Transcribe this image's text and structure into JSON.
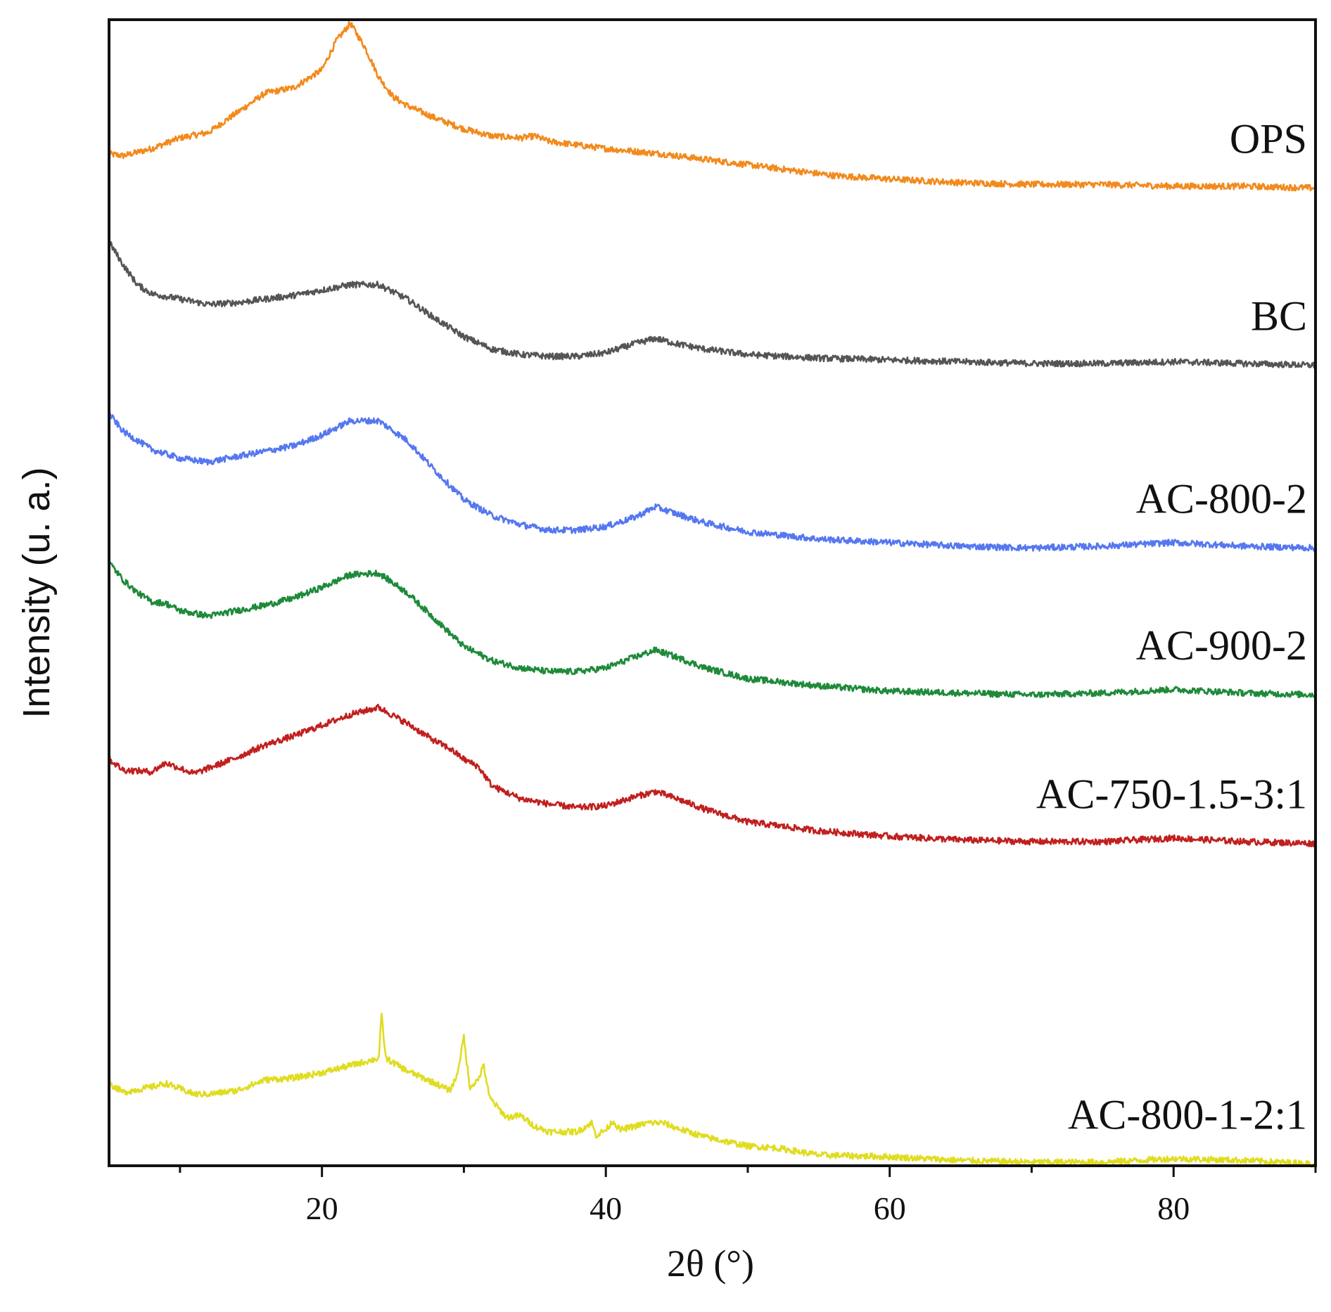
{
  "chart_data": {
    "type": "line",
    "title": "",
    "xlabel": "2θ (°)",
    "ylabel": "Intensity (u. a.)",
    "xlim": [
      5,
      90
    ],
    "ylim": [
      0,
      6.4
    ],
    "x_ticks": [
      20,
      40,
      60,
      80
    ],
    "x_minor_ticks": [
      10,
      30,
      50,
      70,
      90
    ],
    "yticks_visible": false,
    "grid": false,
    "series": [
      {
        "name": "OPS",
        "color": "#f28a1c",
        "points": [
          [
            5,
            5.65
          ],
          [
            6,
            5.64
          ],
          [
            8,
            5.68
          ],
          [
            10,
            5.74
          ],
          [
            12,
            5.77
          ],
          [
            14,
            5.88
          ],
          [
            16,
            5.99
          ],
          [
            18,
            6.02
          ],
          [
            20,
            6.12
          ],
          [
            21,
            6.28
          ],
          [
            22,
            6.38
          ],
          [
            23,
            6.25
          ],
          [
            24,
            6.08
          ],
          [
            25,
            5.97
          ],
          [
            26,
            5.92
          ],
          [
            28,
            5.85
          ],
          [
            30,
            5.79
          ],
          [
            32,
            5.75
          ],
          [
            34,
            5.74
          ],
          [
            35,
            5.75
          ],
          [
            36,
            5.72
          ],
          [
            38,
            5.7
          ],
          [
            40,
            5.68
          ],
          [
            44,
            5.65
          ],
          [
            48,
            5.61
          ],
          [
            52,
            5.57
          ],
          [
            56,
            5.53
          ],
          [
            60,
            5.51
          ],
          [
            65,
            5.49
          ],
          [
            70,
            5.48
          ],
          [
            75,
            5.48
          ],
          [
            80,
            5.47
          ],
          [
            85,
            5.47
          ],
          [
            90,
            5.46
          ]
        ]
      },
      {
        "name": "BC",
        "color": "#555555",
        "points": [
          [
            5,
            5.16
          ],
          [
            6,
            5.03
          ],
          [
            7,
            4.92
          ],
          [
            8,
            4.87
          ],
          [
            10,
            4.84
          ],
          [
            12,
            4.81
          ],
          [
            14,
            4.82
          ],
          [
            16,
            4.84
          ],
          [
            18,
            4.86
          ],
          [
            20,
            4.89
          ],
          [
            22,
            4.92
          ],
          [
            24,
            4.92
          ],
          [
            26,
            4.84
          ],
          [
            28,
            4.73
          ],
          [
            30,
            4.63
          ],
          [
            32,
            4.56
          ],
          [
            34,
            4.53
          ],
          [
            36,
            4.52
          ],
          [
            38,
            4.52
          ],
          [
            40,
            4.54
          ],
          [
            42,
            4.59
          ],
          [
            43.5,
            4.62
          ],
          [
            45,
            4.59
          ],
          [
            47,
            4.56
          ],
          [
            50,
            4.53
          ],
          [
            55,
            4.51
          ],
          [
            60,
            4.5
          ],
          [
            65,
            4.49
          ],
          [
            70,
            4.48
          ],
          [
            75,
            4.48
          ],
          [
            80,
            4.49
          ],
          [
            85,
            4.48
          ],
          [
            90,
            4.47
          ]
        ]
      },
      {
        "name": "AC-800-2",
        "color": "#5577f0",
        "points": [
          [
            5,
            4.2
          ],
          [
            6,
            4.1
          ],
          [
            8,
            4.0
          ],
          [
            10,
            3.95
          ],
          [
            12,
            3.93
          ],
          [
            14,
            3.96
          ],
          [
            16,
            3.99
          ],
          [
            18,
            4.02
          ],
          [
            20,
            4.08
          ],
          [
            22,
            4.16
          ],
          [
            24,
            4.16
          ],
          [
            26,
            4.05
          ],
          [
            28,
            3.88
          ],
          [
            30,
            3.72
          ],
          [
            32,
            3.63
          ],
          [
            34,
            3.58
          ],
          [
            36,
            3.55
          ],
          [
            38,
            3.55
          ],
          [
            40,
            3.57
          ],
          [
            42,
            3.62
          ],
          [
            43.5,
            3.68
          ],
          [
            45,
            3.64
          ],
          [
            47,
            3.59
          ],
          [
            50,
            3.54
          ],
          [
            55,
            3.5
          ],
          [
            60,
            3.48
          ],
          [
            65,
            3.46
          ],
          [
            70,
            3.45
          ],
          [
            75,
            3.46
          ],
          [
            80,
            3.48
          ],
          [
            85,
            3.46
          ],
          [
            90,
            3.45
          ]
        ]
      },
      {
        "name": "AC-900-2",
        "color": "#1e8a3a",
        "points": [
          [
            5,
            3.37
          ],
          [
            6,
            3.27
          ],
          [
            7,
            3.2
          ],
          [
            8,
            3.15
          ],
          [
            9,
            3.14
          ],
          [
            10,
            3.1
          ],
          [
            12,
            3.07
          ],
          [
            14,
            3.1
          ],
          [
            16,
            3.13
          ],
          [
            18,
            3.17
          ],
          [
            20,
            3.23
          ],
          [
            22,
            3.3
          ],
          [
            24,
            3.31
          ],
          [
            26,
            3.2
          ],
          [
            28,
            3.05
          ],
          [
            30,
            2.9
          ],
          [
            32,
            2.82
          ],
          [
            34,
            2.78
          ],
          [
            36,
            2.76
          ],
          [
            38,
            2.76
          ],
          [
            40,
            2.78
          ],
          [
            42,
            2.84
          ],
          [
            43.5,
            2.88
          ],
          [
            45,
            2.84
          ],
          [
            47,
            2.78
          ],
          [
            50,
            2.72
          ],
          [
            55,
            2.68
          ],
          [
            60,
            2.65
          ],
          [
            65,
            2.64
          ],
          [
            70,
            2.63
          ],
          [
            75,
            2.64
          ],
          [
            80,
            2.66
          ],
          [
            85,
            2.64
          ],
          [
            90,
            2.63
          ]
        ]
      },
      {
        "name": "AC-750-1.5-3:1",
        "color": "#c0201f",
        "points": [
          [
            5,
            2.27
          ],
          [
            6,
            2.21
          ],
          [
            8,
            2.2
          ],
          [
            9,
            2.25
          ],
          [
            10,
            2.22
          ],
          [
            11,
            2.19
          ],
          [
            12,
            2.22
          ],
          [
            14,
            2.28
          ],
          [
            16,
            2.35
          ],
          [
            18,
            2.4
          ],
          [
            20,
            2.46
          ],
          [
            22,
            2.52
          ],
          [
            24,
            2.56
          ],
          [
            26,
            2.47
          ],
          [
            28,
            2.37
          ],
          [
            29,
            2.33
          ],
          [
            30,
            2.27
          ],
          [
            31,
            2.23
          ],
          [
            32,
            2.12
          ],
          [
            34,
            2.05
          ],
          [
            36,
            2.02
          ],
          [
            38,
            2.0
          ],
          [
            40,
            2.01
          ],
          [
            42,
            2.06
          ],
          [
            43.5,
            2.09
          ],
          [
            45,
            2.05
          ],
          [
            47,
            1.99
          ],
          [
            50,
            1.92
          ],
          [
            55,
            1.87
          ],
          [
            60,
            1.84
          ],
          [
            65,
            1.82
          ],
          [
            70,
            1.81
          ],
          [
            75,
            1.81
          ],
          [
            80,
            1.83
          ],
          [
            85,
            1.81
          ],
          [
            90,
            1.8
          ]
        ]
      },
      {
        "name": "AC-800-1-2:1",
        "color": "#e0dc20",
        "points": [
          [
            5,
            0.46
          ],
          [
            6,
            0.41
          ],
          [
            8,
            0.44
          ],
          [
            9,
            0.46
          ],
          [
            10,
            0.43
          ],
          [
            11,
            0.4
          ],
          [
            12,
            0.4
          ],
          [
            14,
            0.42
          ],
          [
            16,
            0.48
          ],
          [
            18,
            0.49
          ],
          [
            20,
            0.52
          ],
          [
            22,
            0.56
          ],
          [
            23,
            0.58
          ],
          [
            24,
            0.6
          ],
          [
            24.2,
            0.84
          ],
          [
            24.5,
            0.6
          ],
          [
            26,
            0.53
          ],
          [
            28,
            0.46
          ],
          [
            29,
            0.42
          ],
          [
            29.5,
            0.5
          ],
          [
            30,
            0.72
          ],
          [
            30.4,
            0.44
          ],
          [
            31,
            0.48
          ],
          [
            31.4,
            0.56
          ],
          [
            31.8,
            0.38
          ],
          [
            33,
            0.27
          ],
          [
            34,
            0.28
          ],
          [
            35,
            0.22
          ],
          [
            36,
            0.19
          ],
          [
            38,
            0.19
          ],
          [
            39,
            0.24
          ],
          [
            39.3,
            0.17
          ],
          [
            40,
            0.2
          ],
          [
            40.5,
            0.25
          ],
          [
            41,
            0.2
          ],
          [
            42,
            0.22
          ],
          [
            43,
            0.24
          ],
          [
            44,
            0.24
          ],
          [
            45,
            0.21
          ],
          [
            47,
            0.16
          ],
          [
            50,
            0.11
          ],
          [
            52,
            0.1
          ],
          [
            55,
            0.06
          ],
          [
            60,
            0.05
          ],
          [
            65,
            0.03
          ],
          [
            70,
            0.02
          ],
          [
            75,
            0.02
          ],
          [
            80,
            0.04
          ],
          [
            85,
            0.03
          ],
          [
            90,
            0.01
          ]
        ]
      }
    ]
  }
}
